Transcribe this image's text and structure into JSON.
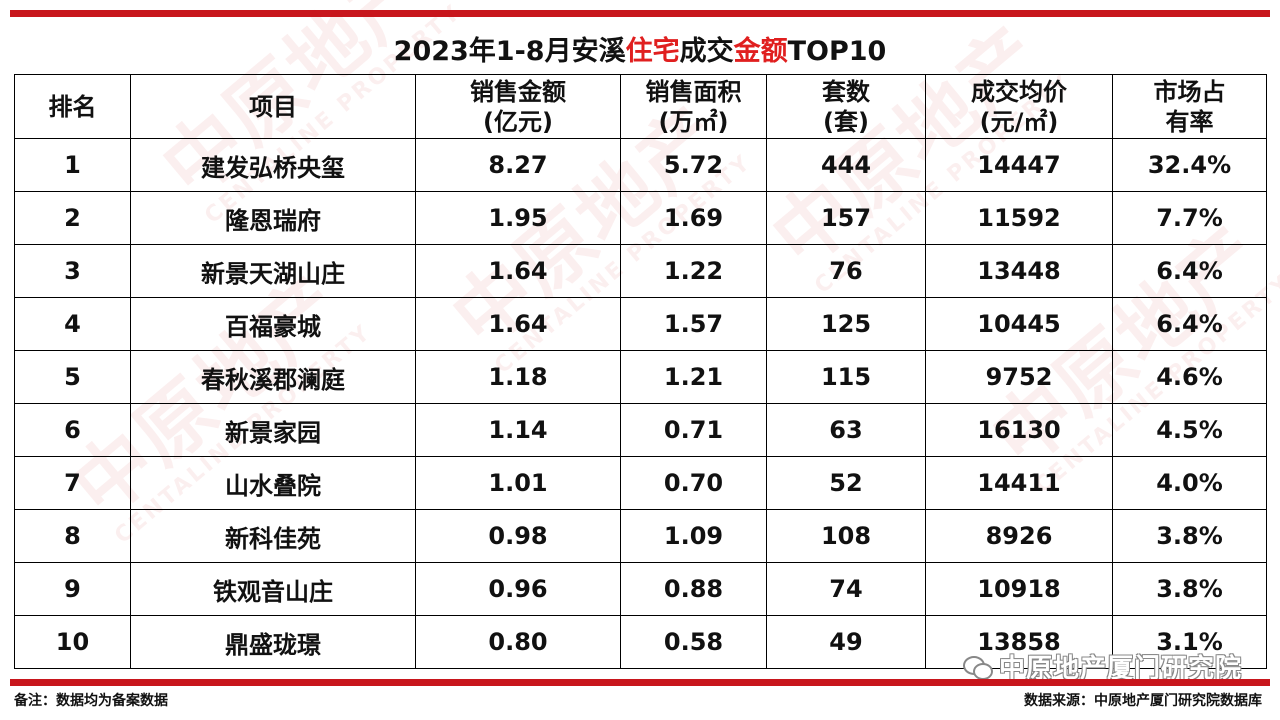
{
  "title": {
    "part1": "2023年1-8月安溪",
    "red1": "住宅",
    "part2": "成交",
    "red2": "金额",
    "part3": "TOP10"
  },
  "columns": [
    {
      "line1": "排名",
      "line2": ""
    },
    {
      "line1": "项目",
      "line2": ""
    },
    {
      "line1": "销售金额",
      "line2": "(亿元)"
    },
    {
      "line1": "销售面积",
      "line2": "(万㎡)"
    },
    {
      "line1": "套数",
      "line2": "(套)"
    },
    {
      "line1": "成交均价",
      "line2": "(元/㎡)"
    },
    {
      "line1": "市场占",
      "line2": "有率"
    }
  ],
  "rows": [
    [
      "1",
      "建发弘桥央玺",
      "8.27",
      "5.72",
      "444",
      "14447",
      "32.4%"
    ],
    [
      "2",
      "隆恩瑞府",
      "1.95",
      "1.69",
      "157",
      "11592",
      "7.7%"
    ],
    [
      "3",
      "新景天湖山庄",
      "1.64",
      "1.22",
      "76",
      "13448",
      "6.4%"
    ],
    [
      "4",
      "百福豪城",
      "1.64",
      "1.57",
      "125",
      "10445",
      "6.4%"
    ],
    [
      "5",
      "春秋溪郡澜庭",
      "1.18",
      "1.21",
      "115",
      "9752",
      "4.6%"
    ],
    [
      "6",
      "新景家园",
      "1.14",
      "0.71",
      "63",
      "16130",
      "4.5%"
    ],
    [
      "7",
      "山水叠院",
      "1.01",
      "0.70",
      "52",
      "14411",
      "4.0%"
    ],
    [
      "8",
      "新科佳苑",
      "0.98",
      "1.09",
      "108",
      "8926",
      "3.8%"
    ],
    [
      "9",
      "铁观音山庄",
      "0.96",
      "0.88",
      "74",
      "10918",
      "3.8%"
    ],
    [
      "10",
      "鼎盛珑璟",
      "0.80",
      "0.58",
      "49",
      "13858",
      "3.1%"
    ]
  ],
  "footnote": "备注：数据均为备案数据",
  "source": "数据来源：中原地产厦门研究院数据库",
  "wechat_badge": "中原地产厦门研究院",
  "watermark": {
    "big": "中原地产",
    "small": "CENTALINE PROPERTY"
  },
  "colors": {
    "accent": "#c8161d",
    "title_red": "#e01f1f"
  }
}
